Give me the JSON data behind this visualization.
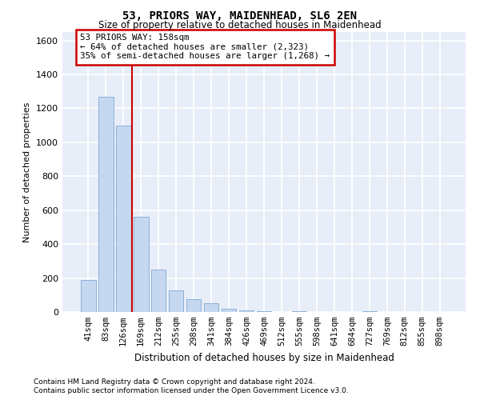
{
  "title1": "53, PRIORS WAY, MAIDENHEAD, SL6 2EN",
  "title2": "Size of property relative to detached houses in Maidenhead",
  "xlabel": "Distribution of detached houses by size in Maidenhead",
  "ylabel": "Number of detached properties",
  "bar_color": "#c5d8f0",
  "bar_edge_color": "#8ab0d8",
  "categories": [
    "41sqm",
    "83sqm",
    "126sqm",
    "169sqm",
    "212sqm",
    "255sqm",
    "298sqm",
    "341sqm",
    "384sqm",
    "426sqm",
    "469sqm",
    "512sqm",
    "555sqm",
    "598sqm",
    "641sqm",
    "684sqm",
    "727sqm",
    "769sqm",
    "812sqm",
    "855sqm",
    "898sqm"
  ],
  "values": [
    190,
    1270,
    1100,
    560,
    250,
    125,
    75,
    50,
    20,
    10,
    5,
    0,
    5,
    0,
    0,
    0,
    5,
    0,
    0,
    0,
    0
  ],
  "ylim": [
    0,
    1650
  ],
  "yticks": [
    0,
    200,
    400,
    600,
    800,
    1000,
    1200,
    1400,
    1600
  ],
  "annotation_text": "53 PRIORS WAY: 158sqm\n← 64% of detached houses are smaller (2,323)\n35% of semi-detached houses are larger (1,268) →",
  "annotation_box_color": "white",
  "annotation_box_edge_color": "#cc0000",
  "vline_color": "#cc0000",
  "vline_x": 2.5,
  "footnote1": "Contains HM Land Registry data © Crown copyright and database right 2024.",
  "footnote2": "Contains public sector information licensed under the Open Government Licence v3.0.",
  "background_color": "#e8eef8",
  "grid_color": "white"
}
